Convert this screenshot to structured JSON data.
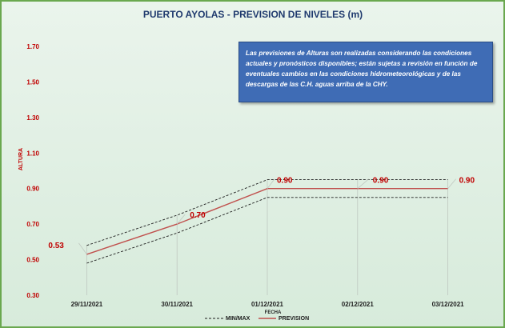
{
  "chart_data": {
    "type": "line",
    "title": "PUERTO AYOLAS - PREVISION DE NIVELES (m)",
    "xlabel": "FECHA",
    "ylabel": "ALTURA",
    "ylim": [
      0.3,
      1.7
    ],
    "yticks": [
      "1.70",
      "1.50",
      "1.30",
      "1.10",
      "0.90",
      "0.70",
      "0.50",
      "0.30"
    ],
    "ytick_values": [
      1.7,
      1.5,
      1.3,
      1.1,
      0.9,
      0.7,
      0.5,
      0.3
    ],
    "categories": [
      "29/11/2021",
      "30/11/2021",
      "01/12/2021",
      "02/12/2021",
      "03/12/2021"
    ],
    "series": [
      {
        "name": "PREVISION",
        "values": [
          0.53,
          0.7,
          0.9,
          0.9,
          0.9
        ],
        "color": "#c0504d",
        "style": "solid"
      },
      {
        "name": "MIN/MAX",
        "values": [
          0.58,
          0.75,
          0.95,
          0.95,
          0.95
        ],
        "color": "#1f1f1f",
        "style": "dashed"
      },
      {
        "name": "",
        "values": [
          0.48,
          0.65,
          0.85,
          0.85,
          0.85
        ],
        "color": "#1f1f1f",
        "style": "dashed"
      }
    ],
    "data_labels": [
      "0.53",
      "0.70",
      "0.90",
      "0.90",
      "0.90"
    ],
    "legend": {
      "placement": "bottom",
      "entries": [
        "MIN/MAX",
        "PREVISION"
      ]
    },
    "grid": false
  },
  "note": "Las previsiones de Alturas son realizadas considerando las condiciones actuales y pronósticos disponibles; están sujetas a revisión en función de eventuales cambios en las condiciones hidrometeorológicas y de las descargas de las C.H. aguas arriba de la CHY."
}
